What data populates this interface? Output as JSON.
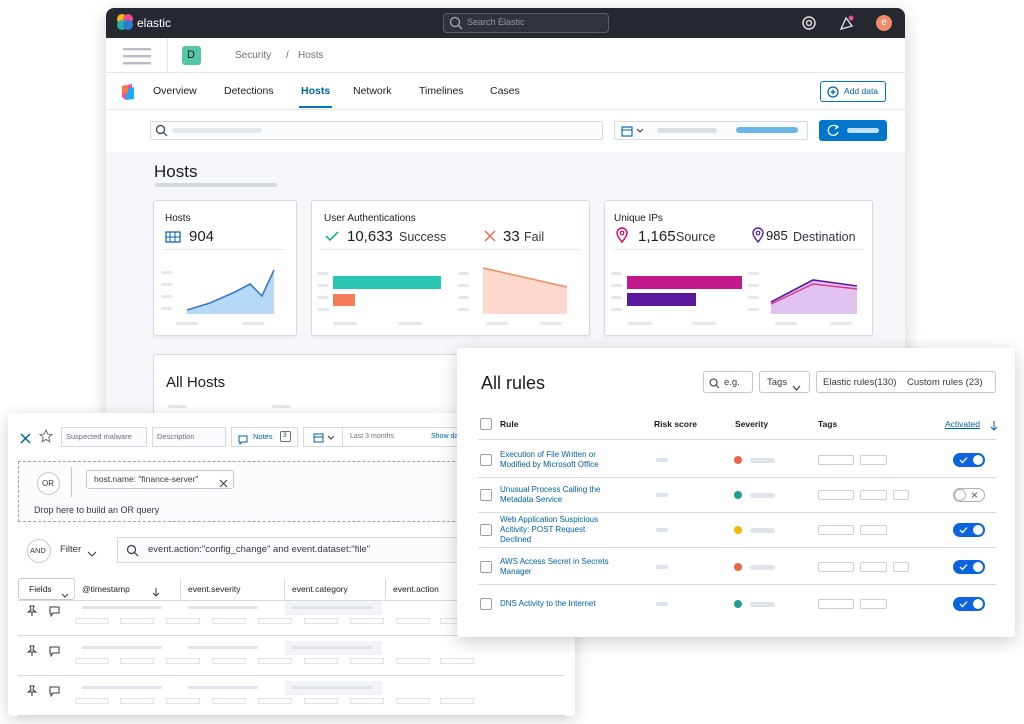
{
  "header": {
    "logo": "elastic",
    "search": "Search Elastic",
    "avatar": "e"
  },
  "breadcrumb": {
    "space": "D",
    "items": [
      "Security",
      "Hosts"
    ],
    "separator": "/"
  },
  "tabs": {
    "items": [
      "Overview",
      "Detections",
      "Hosts",
      "Network",
      "Timelines",
      "Cases"
    ],
    "active": 2,
    "add_data": "Add data"
  },
  "page": {
    "title": "Hosts",
    "all_hosts": "All Hosts"
  },
  "cards": [
    {
      "title": "Hosts",
      "value": "904"
    },
    {
      "title": "User Authentications",
      "success_value": "10,633",
      "success_label": "Success",
      "fail_value": "33",
      "fail_label": "Fail"
    },
    {
      "title": "Unique IPs",
      "source_value": "1,165",
      "source_label": "Source",
      "destination_value": "985",
      "destination_label": "Destination"
    }
  ],
  "timeline": {
    "name": "Suspected malware",
    "description": "Description",
    "notes": "Notes",
    "notes_count": "3",
    "date_range": "Last 3 months",
    "show_dates": "Show dates",
    "or_label": "OR",
    "pill": "host.name: \"finance-server\"",
    "drop_hint": "Drop here to build an OR query",
    "and_label": "AND",
    "filter": "Filter",
    "query": "event.action:\"config_change\" and event.dataset:\"file\"",
    "columns": [
      "Fields",
      "@timestamp",
      "event.severity",
      "event.category",
      "event.action"
    ]
  },
  "rules": {
    "title": "All rules",
    "search": "e.g.",
    "tags_button": "Tags",
    "elastic_rules": "Elastic rules(130)",
    "custom_rules": "Custom rules (23)",
    "columns": [
      "Rule",
      "Risk score",
      "Severity",
      "Tags",
      "Activated"
    ],
    "rows": [
      {
        "name": "Execution of File Written or Modified by Microsoft Office",
        "severity_color": "#e7664c",
        "activated": true
      },
      {
        "name": "Unusual Process Calling the Metadata Service",
        "severity_color": "#209e8f",
        "activated": false
      },
      {
        "name": "Web Application Suspicious Acitivity: POST Request Declined",
        "severity_color": "#f1b70a",
        "activated": true
      },
      {
        "name": "AWS Access Secret in Secrets Manager",
        "severity_color": "#e7664c",
        "activated": true
      },
      {
        "name": "DNS Activity to the Internet",
        "severity_color": "#209e8f",
        "activated": true
      }
    ]
  }
}
